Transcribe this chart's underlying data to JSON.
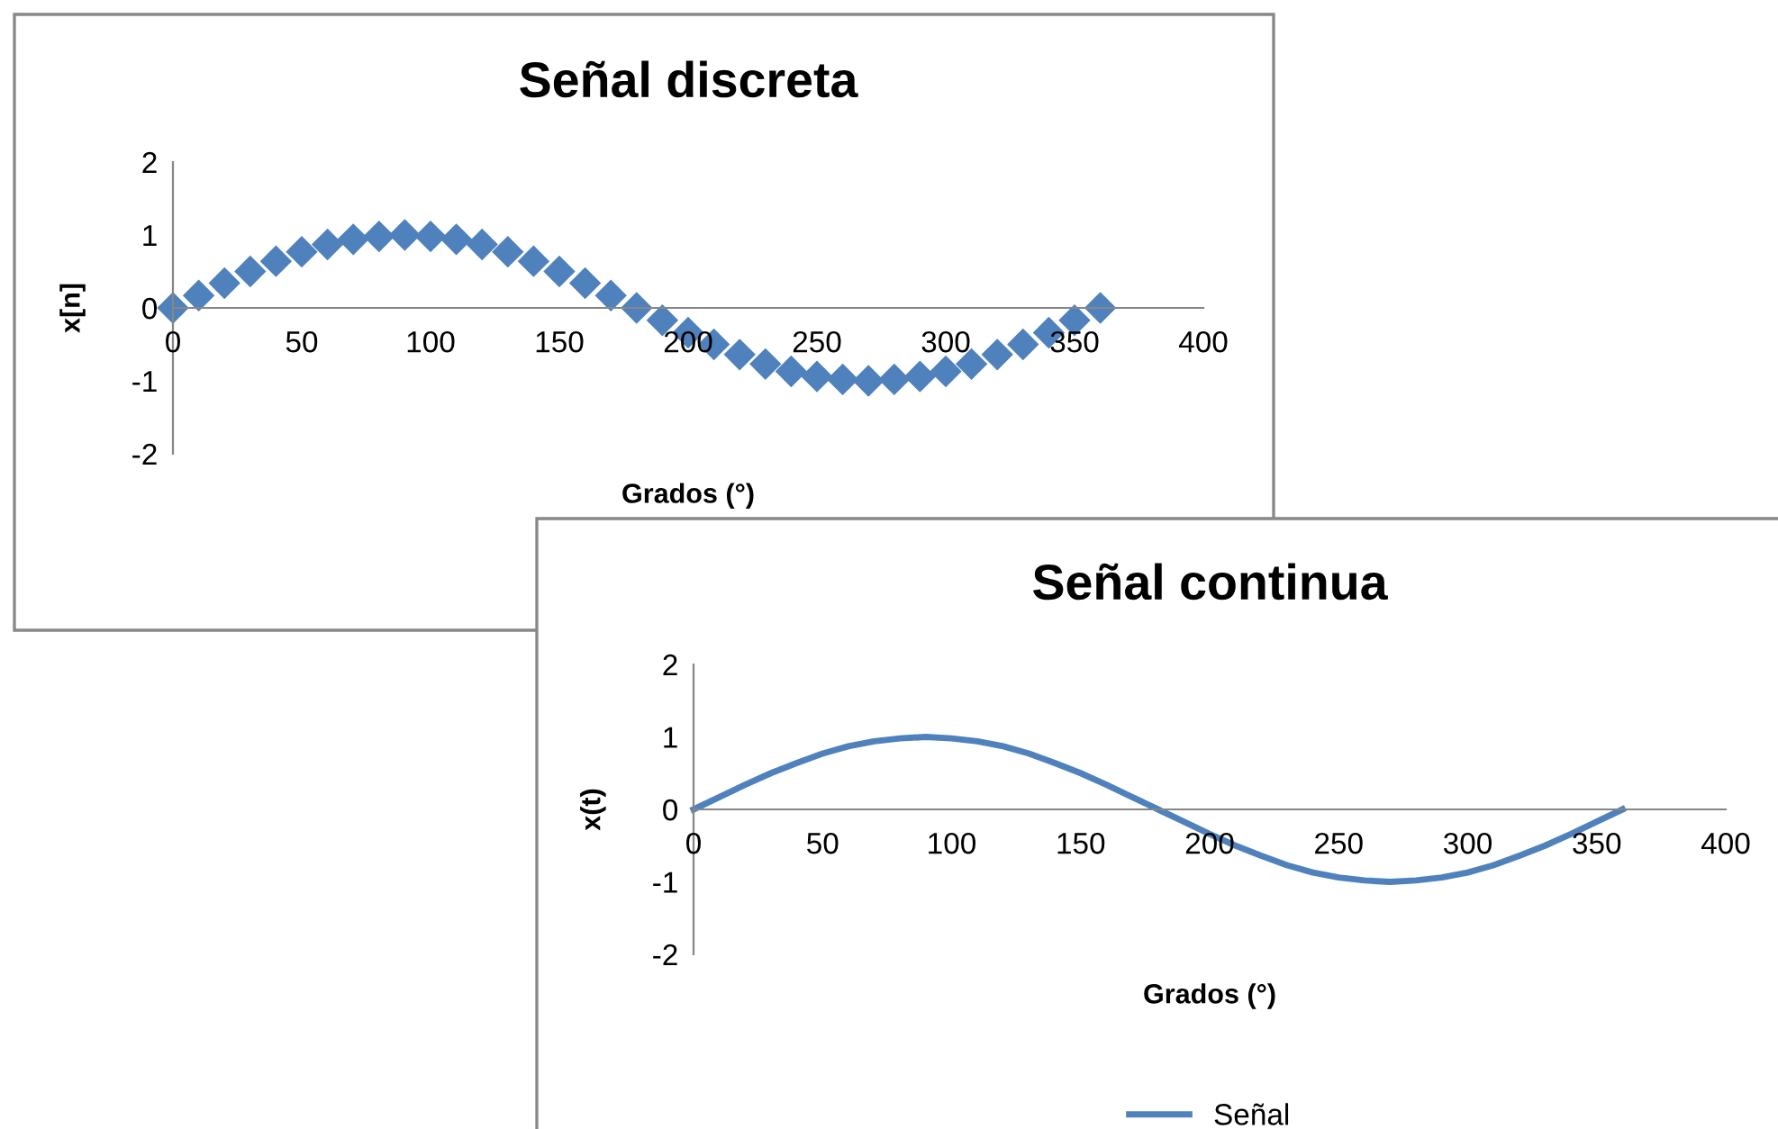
{
  "chart_data": [
    {
      "type": "scatter",
      "title": "Señal discreta",
      "xlabel": "Grados (°)",
      "ylabel": "x[n]",
      "x": [
        0,
        10,
        20,
        30,
        40,
        50,
        60,
        70,
        80,
        90,
        100,
        110,
        120,
        130,
        140,
        150,
        160,
        170,
        180,
        190,
        200,
        210,
        220,
        230,
        240,
        250,
        260,
        270,
        280,
        290,
        300,
        310,
        320,
        330,
        340,
        350,
        360
      ],
      "series": [
        {
          "color": "#4f81bd",
          "values": [
            0,
            0.17,
            0.34,
            0.5,
            0.64,
            0.77,
            0.87,
            0.94,
            0.98,
            1,
            0.98,
            0.94,
            0.87,
            0.77,
            0.64,
            0.5,
            0.34,
            0.17,
            0,
            -0.17,
            -0.34,
            -0.5,
            -0.64,
            -0.77,
            -0.87,
            -0.94,
            -0.98,
            -1,
            -0.98,
            -0.94,
            -0.87,
            -0.77,
            -0.64,
            -0.5,
            -0.34,
            -0.17,
            0
          ]
        }
      ],
      "marker": "diamond",
      "xlim": [
        0,
        400
      ],
      "xticks": [
        0,
        50,
        100,
        150,
        200,
        250,
        300,
        350,
        400
      ],
      "ylim": [
        -2,
        2
      ],
      "yticks": [
        -2,
        -1,
        0,
        1,
        2
      ],
      "grid": false,
      "legend": false
    },
    {
      "type": "line",
      "title": "Señal continua",
      "xlabel": "Grados (°)",
      "ylabel": "x(t)",
      "x": [
        0,
        10,
        20,
        30,
        40,
        50,
        60,
        70,
        80,
        90,
        100,
        110,
        120,
        130,
        140,
        150,
        160,
        170,
        180,
        190,
        200,
        210,
        220,
        230,
        240,
        250,
        260,
        270,
        280,
        290,
        300,
        310,
        320,
        330,
        340,
        350,
        360
      ],
      "series": [
        {
          "name": "Señal",
          "color": "#4f81bd",
          "values": [
            0,
            0.17,
            0.34,
            0.5,
            0.64,
            0.77,
            0.87,
            0.94,
            0.98,
            1,
            0.98,
            0.94,
            0.87,
            0.77,
            0.64,
            0.5,
            0.34,
            0.17,
            0,
            -0.17,
            -0.34,
            -0.5,
            -0.64,
            -0.77,
            -0.87,
            -0.94,
            -0.98,
            -1,
            -0.98,
            -0.94,
            -0.87,
            -0.77,
            -0.64,
            -0.5,
            -0.34,
            -0.17,
            0
          ]
        }
      ],
      "marker": "none",
      "line_style": "solid",
      "xlim": [
        0,
        400
      ],
      "xticks": [
        0,
        50,
        100,
        150,
        200,
        250,
        300,
        350,
        400
      ],
      "ylim": [
        -2,
        2
      ],
      "yticks": [
        -2,
        -1,
        0,
        1,
        2
      ],
      "grid": false,
      "legend": "bottom"
    }
  ]
}
